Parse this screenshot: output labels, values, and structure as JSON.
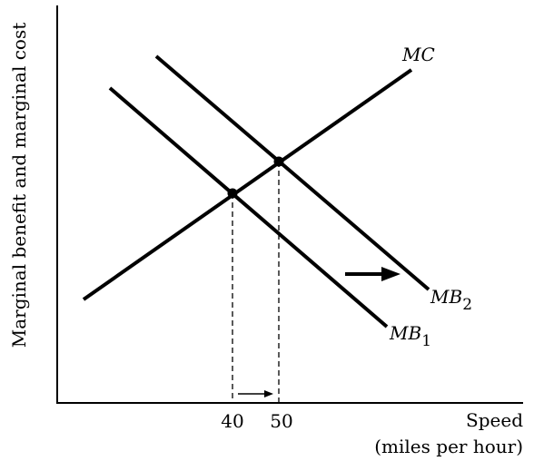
{
  "chart_data": {
    "type": "line",
    "title": "",
    "xlabel": "Speed",
    "xlabel_sub": "(miles per hour)",
    "ylabel": "Marginal benefit and marginal cost",
    "x_ticks": [
      "40",
      "50"
    ],
    "series": [
      {
        "name": "MC",
        "label_main": "MC",
        "label_sub": ""
      },
      {
        "name": "MB1",
        "label_main": "MB",
        "label_sub": "1"
      },
      {
        "name": "MB2",
        "label_main": "MB",
        "label_sub": "2"
      }
    ],
    "equilibria": [
      {
        "x": 40,
        "from": "MB1",
        "to": "MC"
      },
      {
        "x": 50,
        "from": "MB2",
        "to": "MC"
      }
    ],
    "shift": {
      "from": "MB1",
      "to": "MB2",
      "direction": "right"
    },
    "colors": {
      "line": "#000000",
      "background": "#ffffff"
    }
  }
}
